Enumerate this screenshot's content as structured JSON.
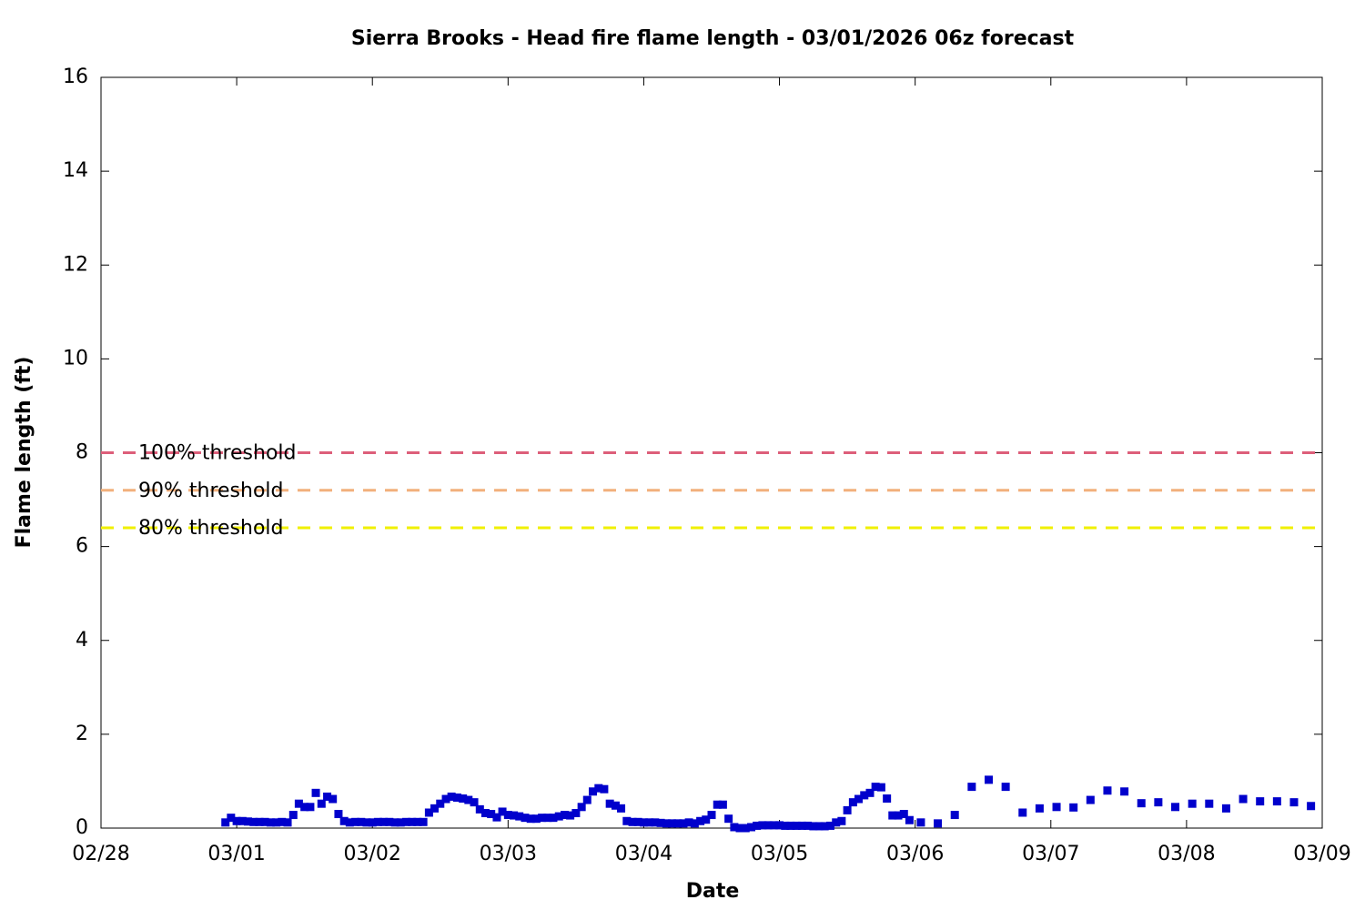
{
  "chart_data": {
    "type": "scatter",
    "title": "Sierra Brooks - Head fire flame length - 03/01/2026 06z forecast",
    "x_label": "Date",
    "y_label": "Flame length (ft)",
    "xlim": [
      0,
      9
    ],
    "xticks": [
      {
        "value": 0,
        "label": "02/28"
      },
      {
        "value": 1,
        "label": "03/01"
      },
      {
        "value": 2,
        "label": "03/02"
      },
      {
        "value": 3,
        "label": "03/03"
      },
      {
        "value": 4,
        "label": "03/04"
      },
      {
        "value": 5,
        "label": "03/05"
      },
      {
        "value": 6,
        "label": "03/06"
      },
      {
        "value": 7,
        "label": "03/07"
      },
      {
        "value": 8,
        "label": "03/08"
      },
      {
        "value": 9,
        "label": "03/09"
      }
    ],
    "ylim": [
      0,
      16
    ],
    "yticks": [
      0,
      2,
      4,
      6,
      8,
      10,
      12,
      14,
      16
    ],
    "grid": false,
    "thresholds": [
      {
        "name": "100% threshold",
        "value": 8,
        "color": "#dd5f7a"
      },
      {
        "name": "90% threshold",
        "value": 7.2,
        "color": "#f2b07c"
      },
      {
        "name": "80% threshold",
        "value": 6.4,
        "color": "#f0f000"
      }
    ],
    "series": [
      {
        "color": "#0000cc",
        "x": [
          0.917,
          0.958,
          1.0,
          1.042,
          1.083,
          1.125,
          1.167,
          1.208,
          1.25,
          1.292,
          1.333,
          1.375,
          1.417,
          1.458,
          1.5,
          1.542,
          1.583,
          1.625,
          1.667,
          1.708,
          1.75,
          1.792,
          1.833,
          1.875,
          1.917,
          1.958,
          2.0,
          2.042,
          2.083,
          2.125,
          2.167,
          2.208,
          2.25,
          2.292,
          2.333,
          2.375,
          2.417,
          2.458,
          2.5,
          2.542,
          2.583,
          2.625,
          2.667,
          2.708,
          2.75,
          2.792,
          2.833,
          2.875,
          2.917,
          2.958,
          3.0,
          3.042,
          3.083,
          3.125,
          3.167,
          3.208,
          3.25,
          3.292,
          3.333,
          3.375,
          3.417,
          3.458,
          3.5,
          3.542,
          3.583,
          3.625,
          3.667,
          3.708,
          3.75,
          3.792,
          3.833,
          3.875,
          3.917,
          3.958,
          4.0,
          4.042,
          4.083,
          4.125,
          4.167,
          4.208,
          4.25,
          4.292,
          4.333,
          4.375,
          4.417,
          4.458,
          4.5,
          4.542,
          4.583,
          4.625,
          4.667,
          4.708,
          4.75,
          4.792,
          4.833,
          4.875,
          4.917,
          4.958,
          5.0,
          5.042,
          5.083,
          5.125,
          5.167,
          5.208,
          5.25,
          5.292,
          5.333,
          5.375,
          5.417,
          5.458,
          5.5,
          5.542,
          5.583,
          5.625,
          5.667,
          5.708,
          5.75,
          5.792,
          5.833,
          5.875,
          5.917,
          5.958,
          6.042,
          6.167,
          6.292,
          6.417,
          6.542,
          6.667,
          6.792,
          6.917,
          7.042,
          7.167,
          7.292,
          7.417,
          7.542,
          7.667,
          7.792,
          7.917,
          8.042,
          8.167,
          8.292,
          8.417,
          8.542,
          8.667,
          8.792,
          8.917
        ],
        "values": [
          0.12,
          0.22,
          0.15,
          0.15,
          0.14,
          0.13,
          0.13,
          0.13,
          0.12,
          0.12,
          0.13,
          0.12,
          0.28,
          0.52,
          0.45,
          0.45,
          0.75,
          0.52,
          0.67,
          0.62,
          0.3,
          0.15,
          0.12,
          0.13,
          0.13,
          0.12,
          0.12,
          0.13,
          0.13,
          0.13,
          0.12,
          0.12,
          0.13,
          0.13,
          0.13,
          0.13,
          0.33,
          0.42,
          0.52,
          0.62,
          0.67,
          0.65,
          0.63,
          0.6,
          0.55,
          0.4,
          0.32,
          0.3,
          0.23,
          0.35,
          0.28,
          0.27,
          0.25,
          0.22,
          0.2,
          0.2,
          0.22,
          0.22,
          0.22,
          0.25,
          0.28,
          0.27,
          0.32,
          0.45,
          0.6,
          0.78,
          0.85,
          0.83,
          0.52,
          0.48,
          0.42,
          0.15,
          0.13,
          0.13,
          0.12,
          0.12,
          0.12,
          0.11,
          0.1,
          0.1,
          0.1,
          0.1,
          0.12,
          0.1,
          0.15,
          0.18,
          0.28,
          0.5,
          0.5,
          0.2,
          0.02,
          0,
          0,
          0.02,
          0.05,
          0.06,
          0.06,
          0.06,
          0.06,
          0.05,
          0.05,
          0.05,
          0.05,
          0.05,
          0.04,
          0.04,
          0.04,
          0.05,
          0.12,
          0.15,
          0.38,
          0.55,
          0.62,
          0.7,
          0.75,
          0.88,
          0.87,
          0.63,
          0.27,
          0.27,
          0.3,
          0.17,
          0.12,
          0.1,
          0.28,
          0.88,
          1.03,
          0.88,
          0.33,
          0.42,
          0.45,
          0.44,
          0.6,
          0.8,
          0.78,
          0.53,
          0.55,
          0.45,
          0.52,
          0.52,
          0.42,
          0.62,
          0.57,
          0.57,
          0.55,
          0.47
        ]
      }
    ]
  }
}
